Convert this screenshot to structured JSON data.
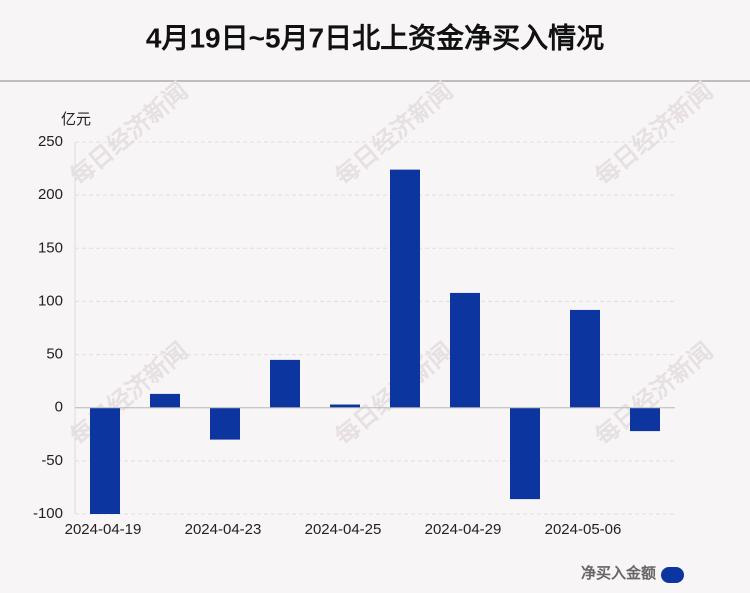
{
  "chart_data": {
    "type": "bar",
    "title": "4月19日~5月7日北上资金净买入情况",
    "y_label": "亿元",
    "watermark": "每日经济新闻",
    "categories": [
      "2024-04-19",
      null,
      "2024-04-23",
      null,
      "2024-04-25",
      null,
      "2024-04-29",
      null,
      "2024-05-06",
      null
    ],
    "series": [
      {
        "name": "净买入金额",
        "color": "#0c35a0",
        "values": [
          -100,
          13,
          -30,
          45,
          3,
          224,
          108,
          -86,
          92,
          -22
        ]
      }
    ],
    "ylim": [
      -100,
      250
    ],
    "yticks": [
      -100,
      -50,
      0,
      50,
      100,
      150,
      200,
      250
    ],
    "grid": true,
    "legend": "bottom-right"
  }
}
